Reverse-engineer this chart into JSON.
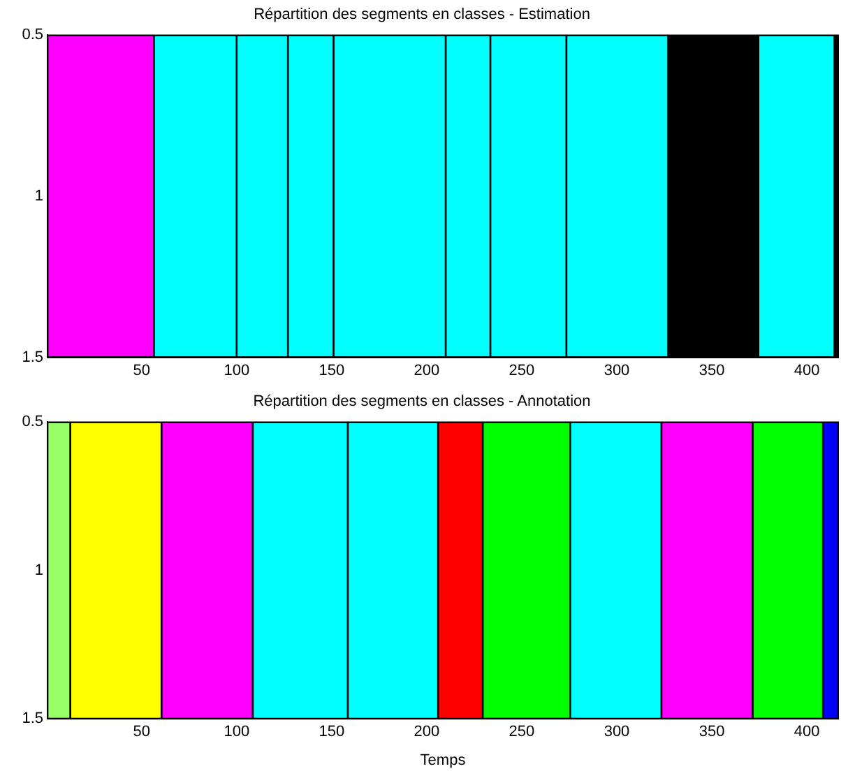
{
  "chart_data": [
    {
      "type": "bar",
      "orientation": "horizontal",
      "title": "Répartition des segments en classes - Estimation",
      "x": [
        1
      ],
      "series": [
        {
          "color": "#ff00ff",
          "base": [
            0.5
          ],
          "values": [
            56
          ]
        },
        {
          "color": "#00ffff",
          "base": [
            56.5
          ],
          "values": [
            43.5
          ]
        },
        {
          "color": "#00ffff",
          "base": [
            100
          ],
          "values": [
            27
          ]
        },
        {
          "color": "#00ffff",
          "base": [
            127
          ],
          "values": [
            24
          ]
        },
        {
          "color": "#00ffff",
          "base": [
            151
          ],
          "values": [
            59
          ]
        },
        {
          "color": "#00ffff",
          "base": [
            210
          ],
          "values": [
            23.5
          ]
        },
        {
          "color": "#00ffff",
          "base": [
            233.5
          ],
          "values": [
            40
          ]
        },
        {
          "color": "#00ffff",
          "base": [
            273.5
          ],
          "values": [
            53.5
          ]
        },
        {
          "color": "#000000",
          "base": [
            327
          ],
          "values": [
            47.5
          ]
        },
        {
          "color": "#00ffff",
          "base": [
            374.5
          ],
          "values": [
            40
          ]
        },
        {
          "color": "#000000",
          "base": [
            414.5
          ],
          "values": [
            2
          ]
        }
      ],
      "xlim": [
        0.5,
        416.5
      ],
      "xticks": [
        50,
        100,
        150,
        200,
        250,
        300,
        350,
        400
      ],
      "ylim": [
        1.5,
        0.5
      ],
      "yticks": [
        0.5,
        1,
        1.5
      ],
      "legend": false
    },
    {
      "type": "bar",
      "orientation": "horizontal",
      "title": "Répartition des segments en classes - Annotation",
      "xlabel": "Temps",
      "x": [
        1
      ],
      "series": [
        {
          "color": "#99ff66",
          "base": [
            0.5
          ],
          "values": [
            12
          ]
        },
        {
          "color": "#ffff00",
          "base": [
            12.5
          ],
          "values": [
            48
          ]
        },
        {
          "color": "#ff00ff",
          "base": [
            60.5
          ],
          "values": [
            48
          ]
        },
        {
          "color": "#00ffff",
          "base": [
            108.5
          ],
          "values": [
            50
          ]
        },
        {
          "color": "#00ffff",
          "base": [
            158.5
          ],
          "values": [
            47.5
          ]
        },
        {
          "color": "#ff0000",
          "base": [
            206
          ],
          "values": [
            23.5
          ]
        },
        {
          "color": "#00ff00",
          "base": [
            229.5
          ],
          "values": [
            46
          ]
        },
        {
          "color": "#00ffff",
          "base": [
            275.5
          ],
          "values": [
            48
          ]
        },
        {
          "color": "#ff00ff",
          "base": [
            323.5
          ],
          "values": [
            48
          ]
        },
        {
          "color": "#00ff00",
          "base": [
            371.5
          ],
          "values": [
            37
          ]
        },
        {
          "color": "#0000ff",
          "base": [
            408.5
          ],
          "values": [
            8
          ]
        }
      ],
      "xlim": [
        0.5,
        416.5
      ],
      "xticks": [
        50,
        100,
        150,
        200,
        250,
        300,
        350,
        400
      ],
      "ylim": [
        1.5,
        0.5
      ],
      "yticks": [
        0.5,
        1,
        1.5
      ],
      "legend": false
    }
  ]
}
